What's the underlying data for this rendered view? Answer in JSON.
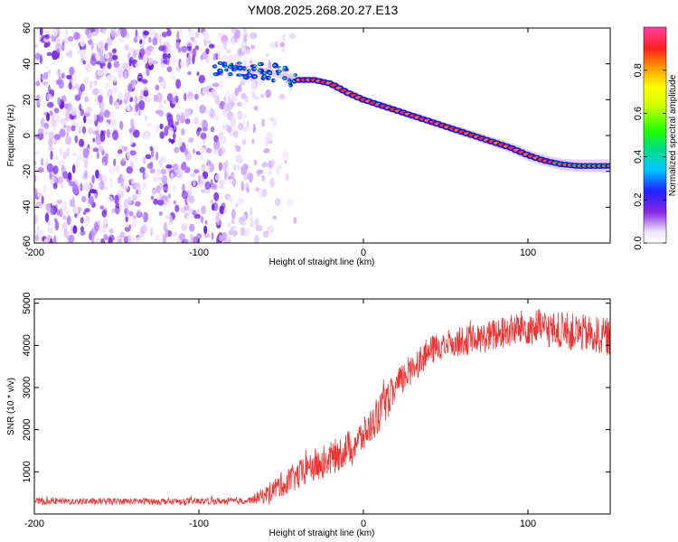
{
  "title": "YM08.2025.268.20.27.E13",
  "chart_data": [
    {
      "type": "heatmap",
      "xlabel": "Height of straight line (km)",
      "ylabel": "Frequency (Hz)",
      "xlim": [
        -200,
        150
      ],
      "ylim": [
        -60,
        60
      ],
      "xticks": [
        -200,
        -100,
        0,
        100
      ],
      "yticks": [
        -60,
        -40,
        -20,
        0,
        20,
        40,
        60
      ],
      "xtick_labels": [
        "-200",
        "-100",
        "0",
        "100"
      ],
      "ytick_labels": [
        "-60",
        "-40",
        "-20",
        "0",
        "20",
        "40",
        "60"
      ],
      "ridge": {
        "name": "spectral ridge",
        "x": [
          -90,
          -80,
          -70,
          -60,
          -50,
          -40,
          -30,
          -20,
          -10,
          0,
          10,
          20,
          30,
          40,
          50,
          60,
          70,
          80,
          90,
          100,
          110,
          120,
          130,
          140,
          150
        ],
        "y": [
          36,
          37,
          37,
          36,
          34,
          31,
          31,
          29,
          24,
          20,
          17,
          14,
          11,
          8,
          5,
          2,
          -1,
          -4,
          -7,
          -11,
          -14,
          -16,
          -17,
          -17,
          -17
        ]
      },
      "noise_region": {
        "x_from": -200,
        "x_to": -50,
        "note": "broadband low-amplitude energy"
      },
      "colorbar": {
        "label": "Normalized spectral amplitude",
        "range": [
          0.0,
          1.0
        ],
        "ticks": [
          0.0,
          0.2,
          0.4,
          0.6,
          0.8
        ],
        "tick_labels": [
          "0.0",
          "0.2",
          "0.4",
          "0.6",
          "0.8"
        ]
      }
    },
    {
      "type": "line",
      "xlabel": "Height of straight line (km)",
      "ylabel": "SNR (10 * v/v)",
      "xlim": [
        -200,
        150
      ],
      "ylim": [
        0,
        5100
      ],
      "xticks": [
        -200,
        -100,
        0,
        100
      ],
      "yticks": [
        1000,
        2000,
        3000,
        4000,
        5000
      ],
      "xtick_labels": [
        "-200",
        "-100",
        "0",
        "100"
      ],
      "ytick_labels": [
        "1000",
        "2000",
        "3000",
        "4000",
        "5000"
      ],
      "series": [
        {
          "name": "SNR",
          "color": "#ee3333",
          "x": [
            -200,
            -150,
            -100,
            -70,
            -60,
            -50,
            -40,
            -30,
            -20,
            -10,
            0,
            10,
            20,
            30,
            40,
            50,
            60,
            70,
            80,
            90,
            100,
            110,
            120,
            130,
            140,
            150
          ],
          "y": [
            300,
            300,
            300,
            310,
            450,
            700,
            900,
            1150,
            1300,
            1550,
            1850,
            2400,
            3000,
            3500,
            3850,
            4050,
            4100,
            4150,
            4250,
            4350,
            4450,
            4400,
            4350,
            4300,
            4250,
            4200
          ],
          "spread": [
            80,
            80,
            80,
            80,
            200,
            300,
            350,
            400,
            400,
            420,
            420,
            450,
            400,
            380,
            350,
            350,
            350,
            350,
            400,
            400,
            450,
            450,
            450,
            450,
            450,
            450
          ]
        }
      ]
    }
  ]
}
